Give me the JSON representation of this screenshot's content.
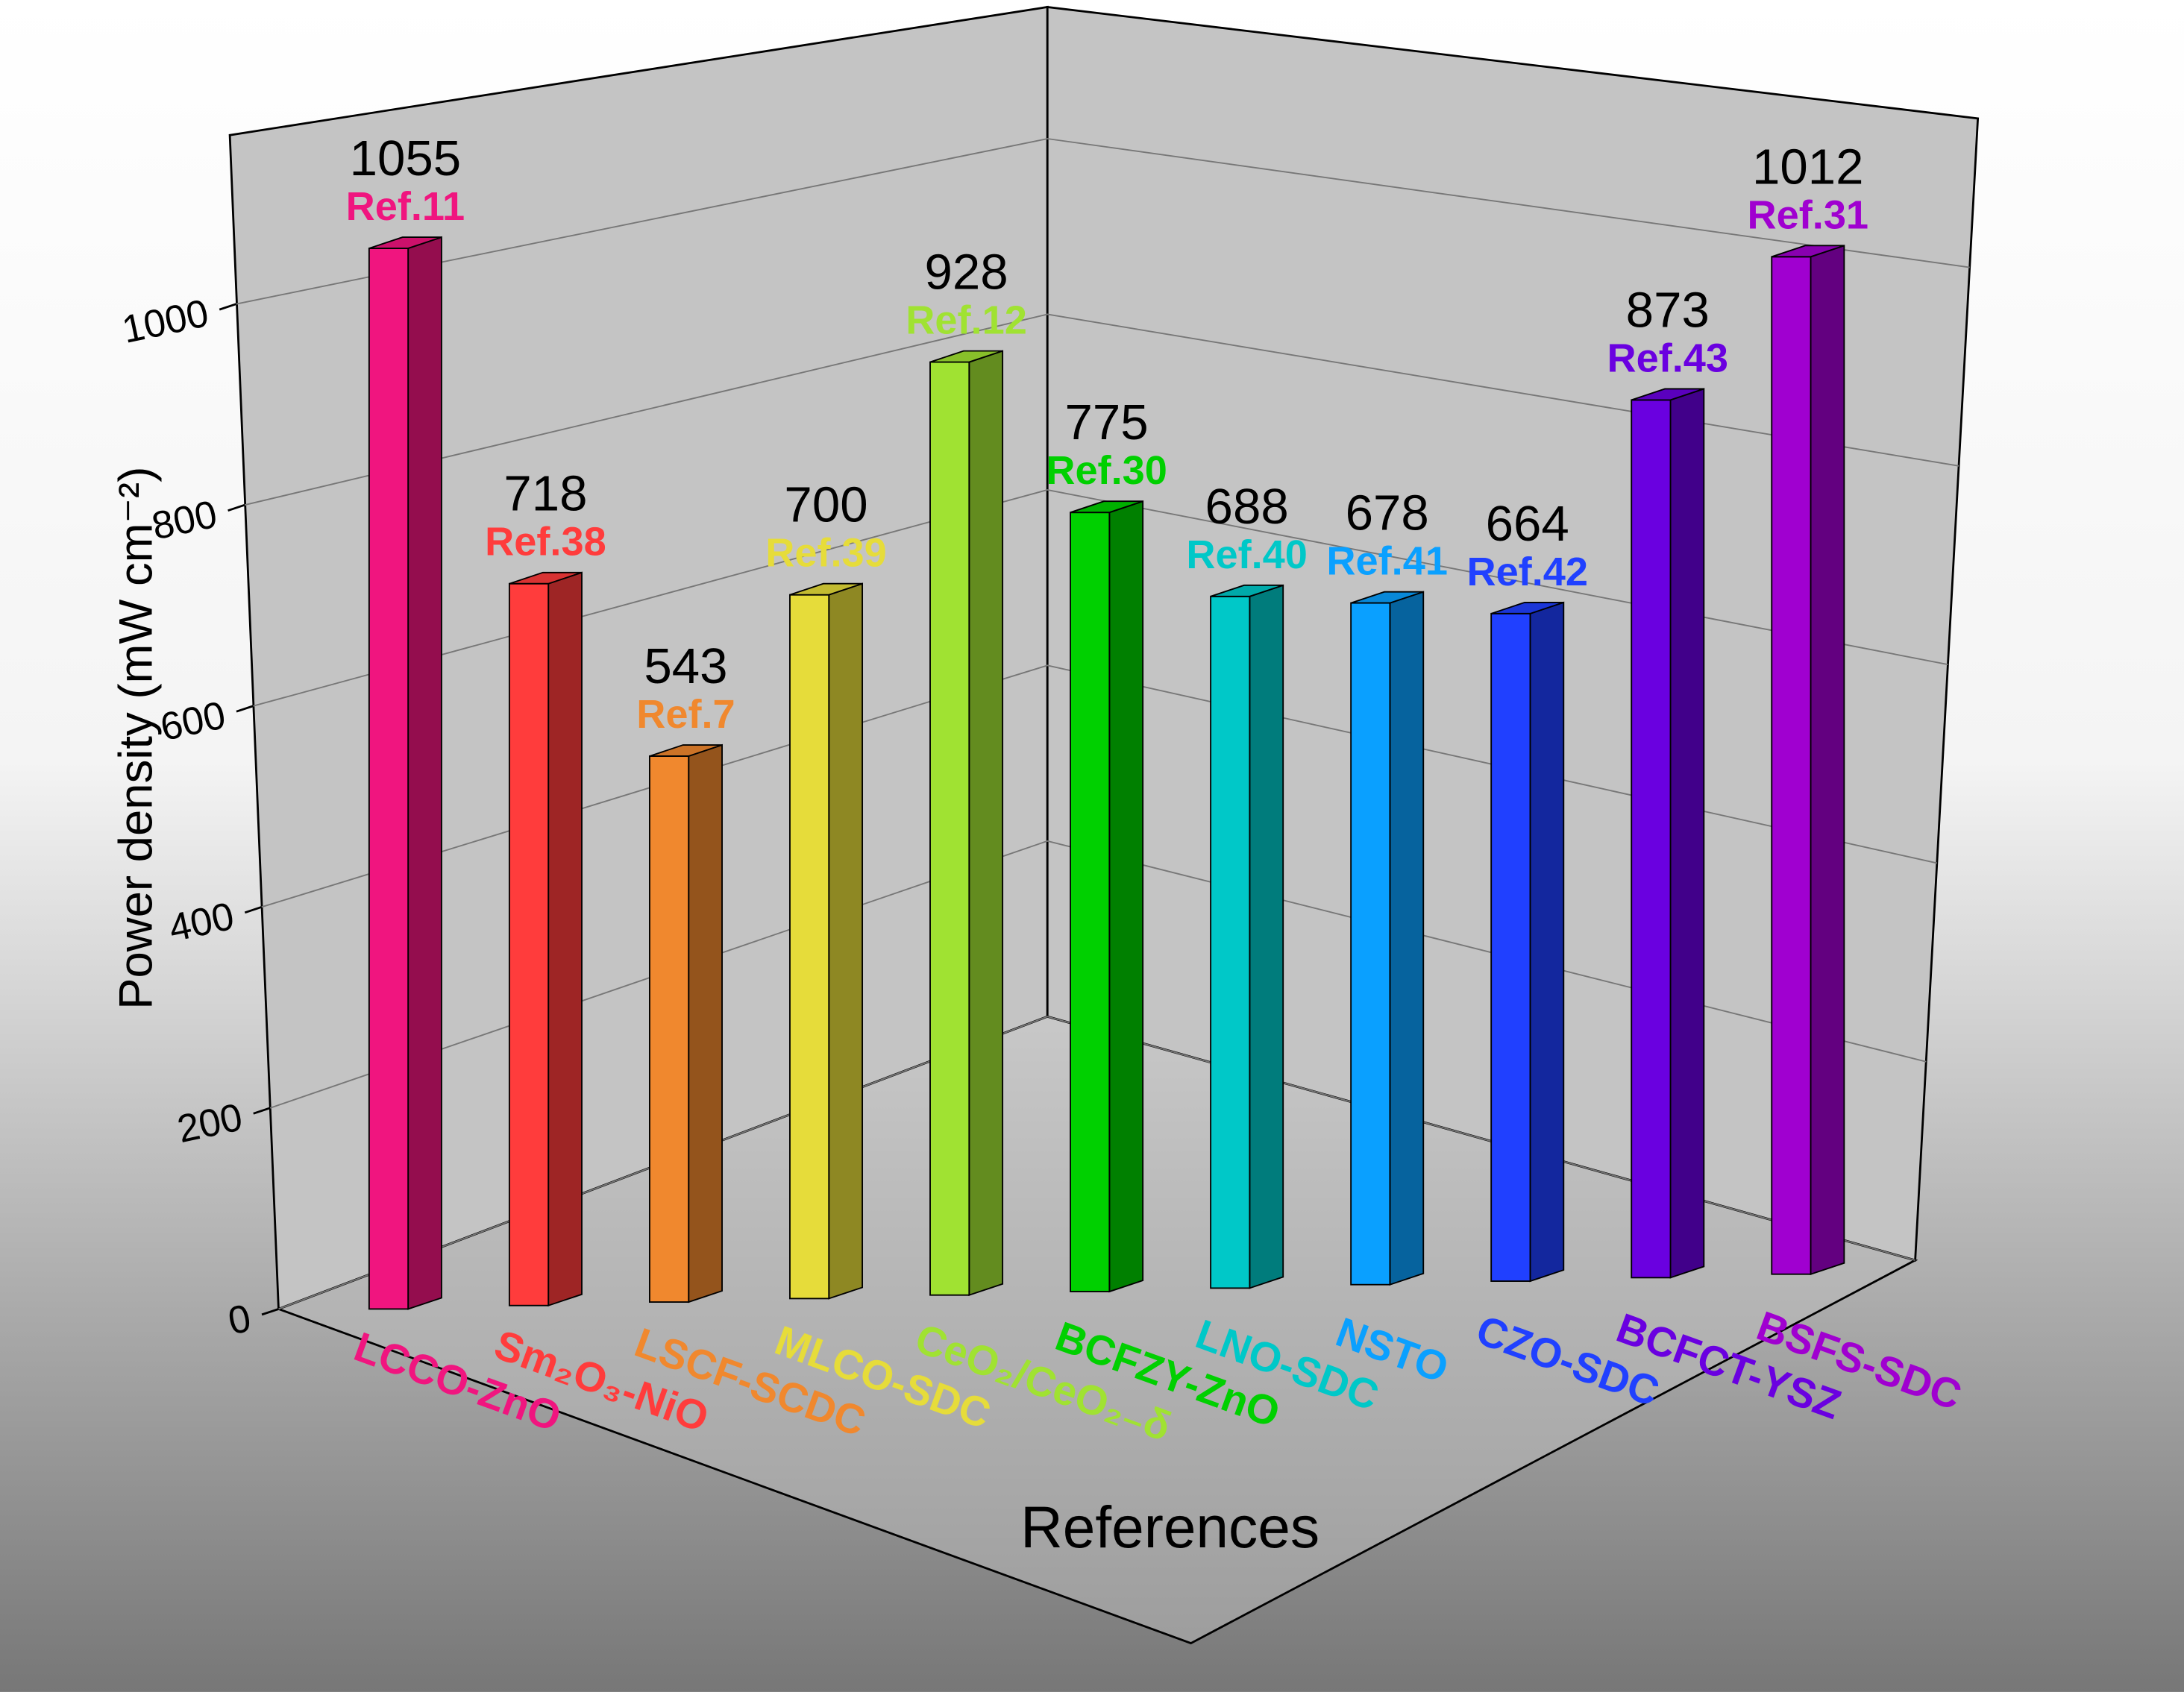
{
  "chart_data": {
    "type": "bar3d",
    "ylabel": "Power density (mW cm⁻²)",
    "xlabel": "References",
    "categories": [
      "LCCO-ZnO",
      "Sm₂O₃-NiO",
      "LSCF-SCDC",
      "MLCO-SDC",
      "CeO₂/CeO₂₋δ",
      "BCFZY-ZnO",
      "LNO-SDC",
      "NSTO",
      "CZO-SDC",
      "BCFCT-YSZ",
      "BSFS-SDC"
    ],
    "values": [
      1055,
      718,
      543,
      700,
      928,
      775,
      688,
      678,
      664,
      873,
      1012
    ],
    "annotations": [
      "Ref.11",
      "Ref.38",
      "Ref.7",
      "Ref.39",
      "Ref.12",
      "Ref.30",
      "Ref.40",
      "Ref.41",
      "Ref.42",
      "Ref.43",
      "Ref.31"
    ],
    "colors": [
      "#f0157f",
      "#ff3c3c",
      "#f0882e",
      "#e6dc3a",
      "#a0e232",
      "#00d000",
      "#00c8c8",
      "#0aa0ff",
      "#2040ff",
      "#6a00e0",
      "#a000d0"
    ],
    "ylim": [
      0,
      1150
    ],
    "yticks": [
      0,
      200,
      400,
      600,
      800,
      1000
    ],
    "grid": true
  }
}
